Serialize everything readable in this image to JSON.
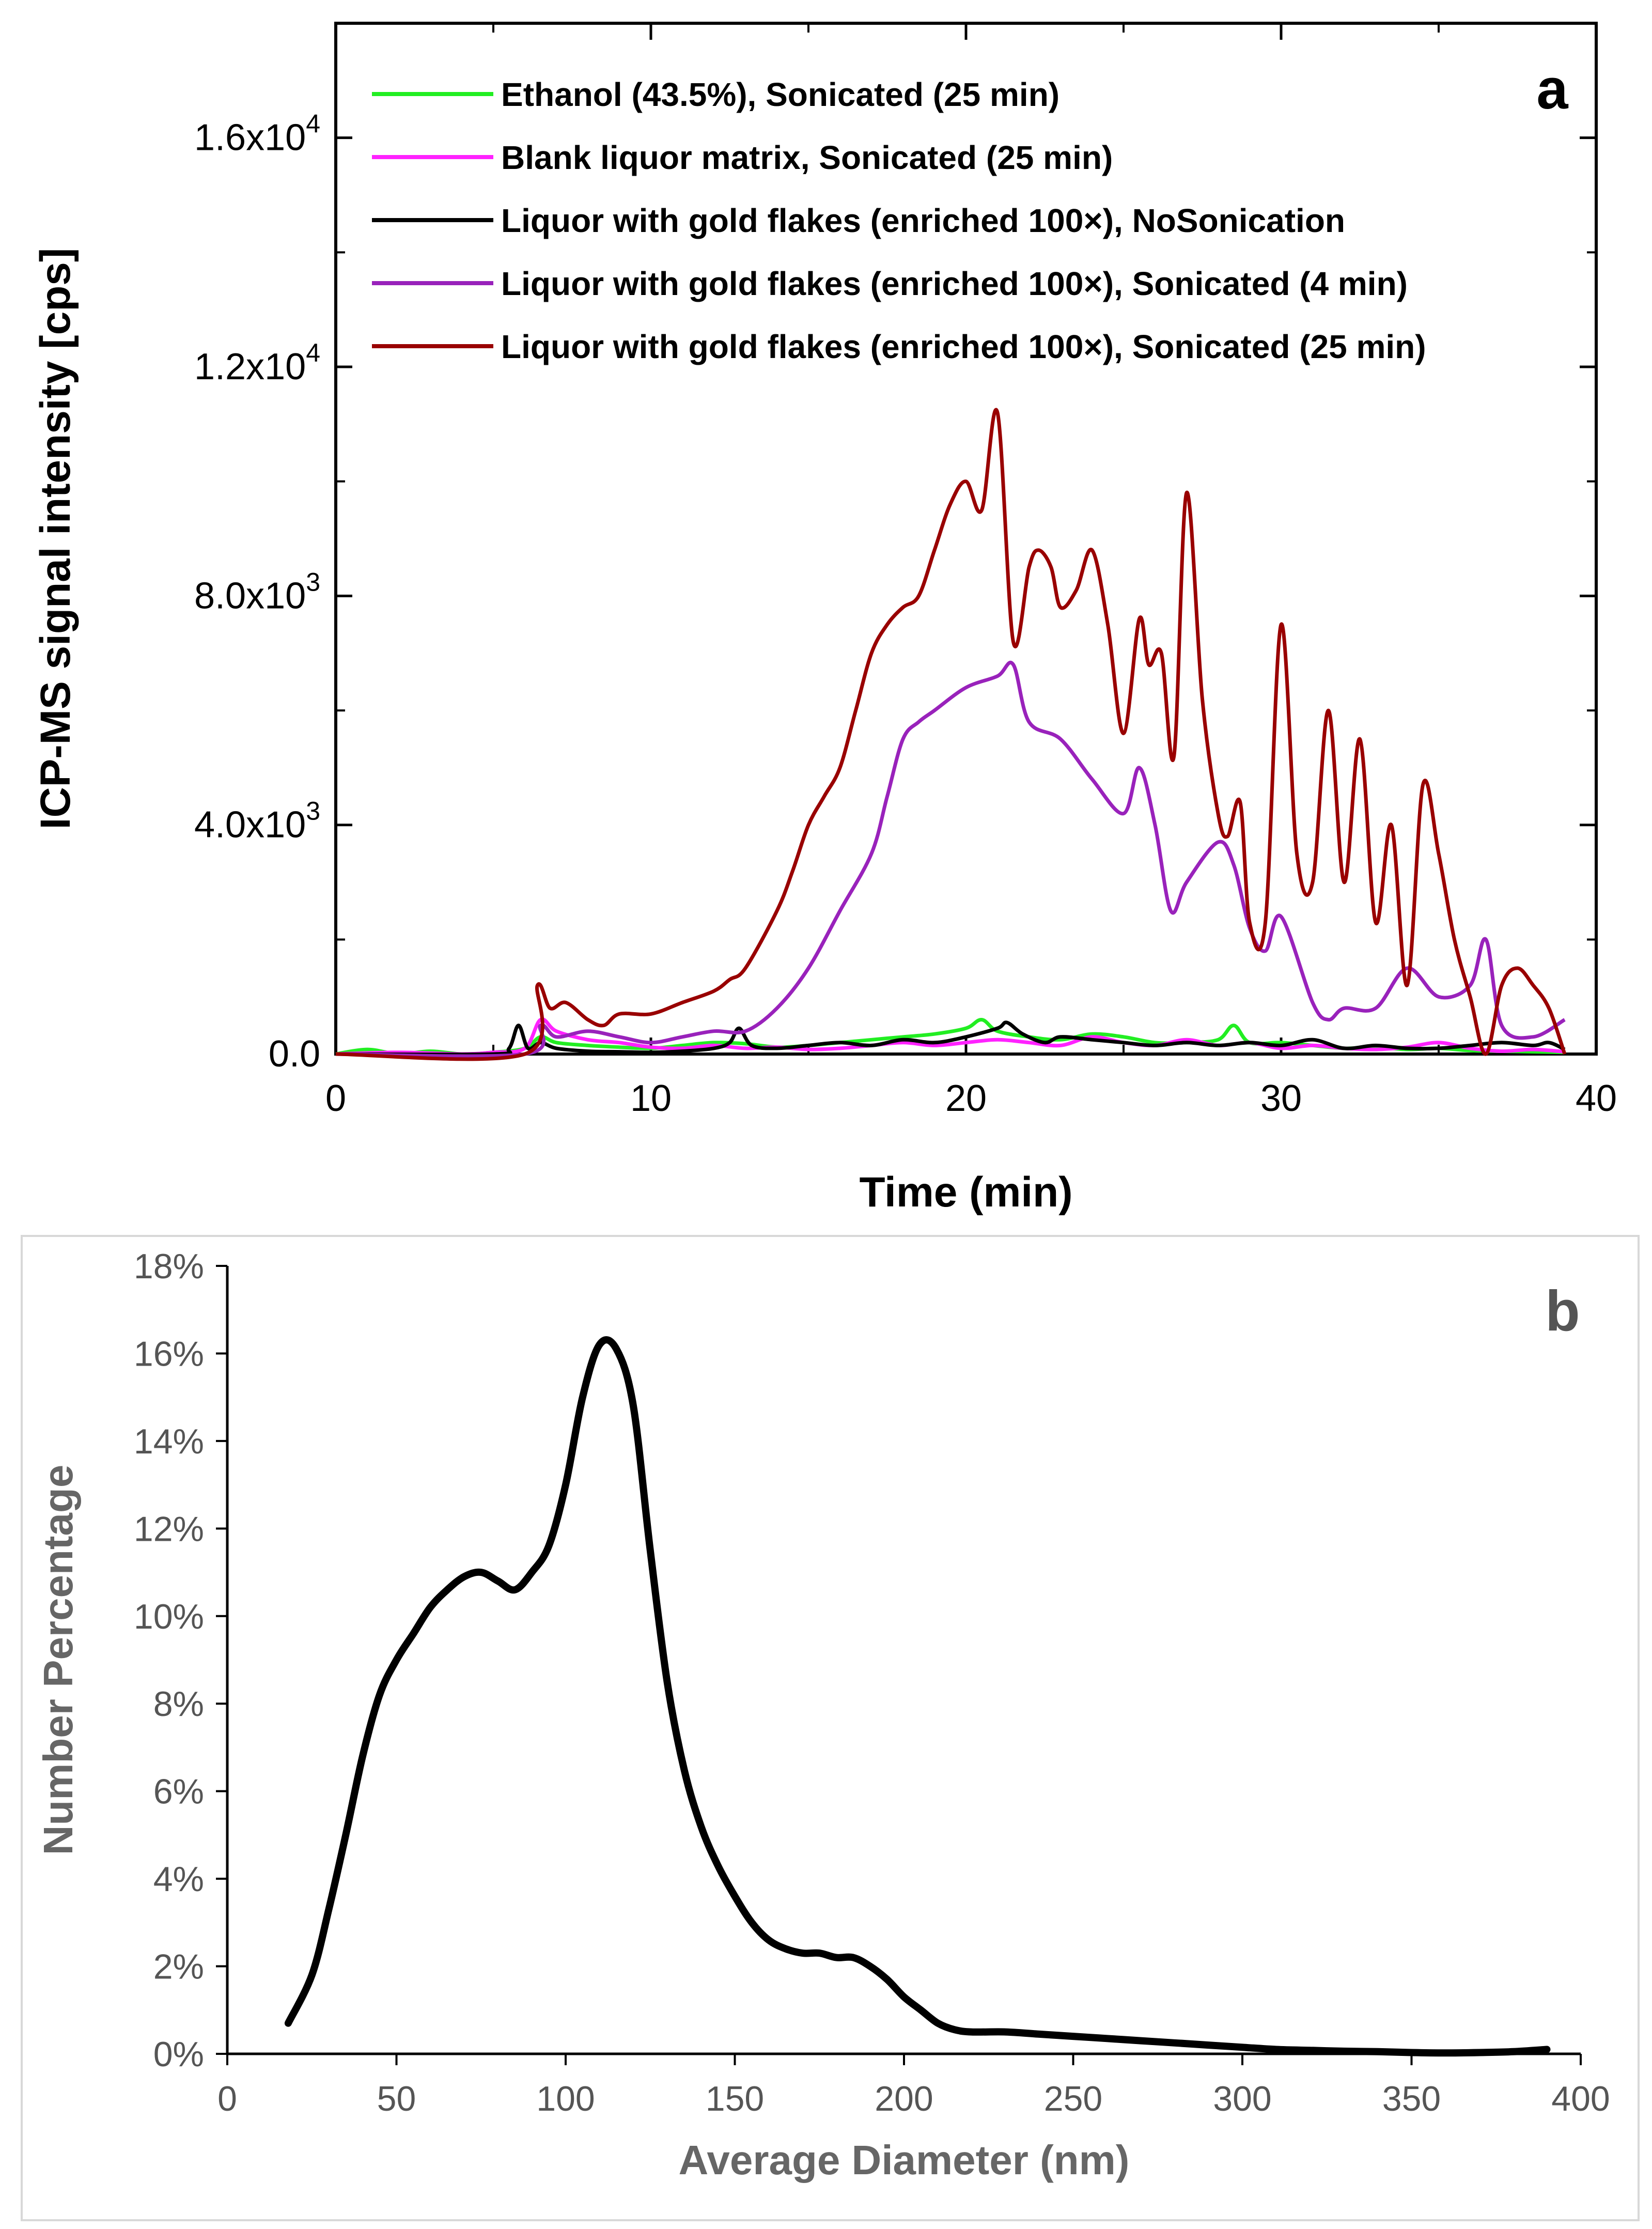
{
  "chart_data": [
    {
      "type": "line",
      "panel_label": "a",
      "xlabel": "Time (min)",
      "ylabel": "ICP-MS signal intensity [cps]",
      "xlim": [
        0,
        40
      ],
      "ylim": [
        0,
        18000
      ],
      "x_ticks": [
        0,
        10,
        20,
        30,
        40
      ],
      "x_tick_labels": [
        "0",
        "10",
        "20",
        "30",
        "40"
      ],
      "y_ticks": [
        0,
        4000,
        8000,
        12000,
        16000
      ],
      "y_tick_labels": [
        {
          "base": "0.0",
          "exp": ""
        },
        {
          "base": "4.0x10",
          "exp": "3"
        },
        {
          "base": "8.0x10",
          "exp": "3"
        },
        {
          "base": "1.2x10",
          "exp": "4"
        },
        {
          "base": "1.6x10",
          "exp": "4"
        }
      ],
      "grid": false,
      "legend_position": "top-left",
      "series": [
        {
          "name": "Ethanol (43.5%), Sonicated (25 min)",
          "color": "#22ee22",
          "x": [
            0,
            1,
            2,
            3,
            4,
            5,
            6,
            6.5,
            7,
            8,
            9,
            10,
            11,
            12,
            13,
            14,
            15,
            16,
            17,
            18,
            19,
            20,
            20.5,
            21,
            22,
            23,
            24,
            25,
            26,
            27,
            28,
            28.5,
            29,
            30,
            31,
            32,
            33,
            34,
            35,
            36,
            37,
            38,
            39
          ],
          "y": [
            0,
            80,
            0,
            50,
            0,
            30,
            100,
            300,
            200,
            150,
            120,
            100,
            150,
            200,
            180,
            120,
            150,
            200,
            250,
            300,
            350,
            450,
            600,
            400,
            300,
            250,
            350,
            300,
            200,
            200,
            250,
            500,
            200,
            200,
            150,
            100,
            120,
            80,
            100,
            60,
            50,
            40,
            30
          ]
        },
        {
          "name": "Blank liquor matrix, Sonicated (25 min)",
          "color": "#ff22ff",
          "x": [
            0,
            2,
            4,
            5,
            6,
            6.5,
            7,
            8,
            9,
            10,
            11,
            12,
            13,
            14,
            15,
            16,
            17,
            18,
            19,
            20,
            21,
            22,
            23,
            24,
            25,
            26,
            27,
            28,
            29,
            30,
            31,
            32,
            33,
            34,
            35,
            36,
            37,
            38,
            39
          ],
          "y": [
            0,
            30,
            0,
            30,
            100,
            600,
            400,
            250,
            200,
            120,
            100,
            150,
            100,
            120,
            80,
            100,
            150,
            200,
            150,
            200,
            250,
            200,
            150,
            300,
            200,
            150,
            250,
            150,
            200,
            100,
            150,
            100,
            80,
            120,
            200,
            100,
            50,
            80,
            40
          ]
        },
        {
          "name": "Liquor with gold flakes (enriched 100×), NoSonication",
          "color": "#000000",
          "x": [
            0,
            5,
            5.5,
            5.8,
            6.1,
            6.5,
            7,
            8,
            9,
            10,
            11,
            12,
            12.5,
            12.8,
            13.2,
            14,
            15,
            16,
            17,
            18,
            19,
            20,
            21,
            21.3,
            21.8,
            22.5,
            23,
            24,
            25,
            26,
            27,
            28,
            29,
            30,
            31,
            32,
            33,
            34,
            35,
            36,
            37,
            38,
            38.5,
            39
          ],
          "y": [
            0,
            0,
            100,
            500,
            100,
            200,
            100,
            50,
            40,
            30,
            50,
            100,
            200,
            450,
            150,
            100,
            150,
            200,
            150,
            250,
            200,
            300,
            450,
            550,
            350,
            200,
            300,
            250,
            200,
            150,
            200,
            150,
            200,
            150,
            250,
            100,
            150,
            100,
            100,
            150,
            200,
            150,
            200,
            80
          ]
        },
        {
          "name": "Liquor with gold flakes (enriched 100×), Sonicated (4 min)",
          "color": "#9922bb",
          "x": [
            0,
            6,
            6.5,
            7,
            8,
            9,
            10,
            11,
            12,
            13,
            14,
            15,
            16,
            17,
            17.5,
            18,
            18.5,
            19,
            20,
            21,
            21.5,
            22,
            23,
            24,
            25,
            25.5,
            26,
            26.5,
            27,
            28,
            28.5,
            29,
            29.5,
            30,
            31,
            31.5,
            32,
            33,
            34,
            35,
            36,
            36.5,
            37,
            38,
            39
          ],
          "y": [
            0,
            0,
            500,
            300,
            400,
            300,
            200,
            300,
            400,
            400,
            800,
            1500,
            2500,
            3500,
            4500,
            5500,
            5800,
            6000,
            6400,
            6600,
            6800,
            5800,
            5500,
            4800,
            4200,
            5000,
            4000,
            2500,
            3000,
            3700,
            3300,
            2200,
            1800,
            2400,
            900,
            600,
            800,
            800,
            1500,
            1000,
            1200,
            2000,
            500,
            300,
            600
          ]
        },
        {
          "name": "Liquor with gold flakes (enriched 100×), Sonicated (25 min)",
          "color": "#990000",
          "x": [
            0,
            6,
            6.4,
            6.8,
            7.3,
            8,
            8.5,
            9,
            10,
            11,
            12,
            12.5,
            13,
            14,
            14.5,
            15,
            15.5,
            16,
            16.5,
            17,
            17.5,
            18,
            18.5,
            19,
            19.5,
            20,
            20.5,
            21,
            21.5,
            22,
            22.3,
            22.7,
            23,
            23.5,
            24,
            24.5,
            25,
            25.5,
            25.8,
            26.2,
            26.6,
            27,
            27.5,
            28,
            28.3,
            28.7,
            29,
            29.5,
            30,
            30.5,
            31,
            31.5,
            32,
            32.5,
            33,
            33.5,
            34,
            34.5,
            35,
            35.5,
            36,
            36.5,
            37,
            37.5,
            38,
            38.5,
            39
          ],
          "y": [
            0,
            0,
            1200,
            800,
            900,
            600,
            500,
            700,
            700,
            900,
            1100,
            1300,
            1500,
            2500,
            3200,
            4000,
            4500,
            5000,
            6000,
            7000,
            7500,
            7800,
            8000,
            8800,
            9600,
            10000,
            9500,
            11200,
            7200,
            8500,
            8800,
            8500,
            7800,
            8100,
            8800,
            7500,
            5600,
            7600,
            6800,
            7000,
            5200,
            9800,
            6200,
            4200,
            3800,
            4400,
            2300,
            2300,
            7500,
            3500,
            3000,
            6000,
            3000,
            5500,
            2300,
            4000,
            1200,
            4700,
            3500,
            2000,
            1000,
            0,
            1200,
            1500,
            1200,
            800,
            0
          ]
        }
      ]
    },
    {
      "type": "line",
      "panel_label": "b",
      "xlabel": "Average Diameter (nm)",
      "ylabel": "Number Percentage",
      "xlim": [
        0,
        400
      ],
      "ylim": [
        0,
        18
      ],
      "x_ticks": [
        0,
        50,
        100,
        150,
        200,
        250,
        300,
        350,
        400
      ],
      "x_tick_labels": [
        "0",
        "50",
        "100",
        "150",
        "200",
        "250",
        "300",
        "350",
        "400"
      ],
      "y_ticks": [
        0,
        2,
        4,
        6,
        8,
        10,
        12,
        14,
        16,
        18
      ],
      "y_tick_labels": [
        "0%",
        "2%",
        "4%",
        "6%",
        "8%",
        "10%",
        "12%",
        "14%",
        "16%",
        "18%"
      ],
      "grid": false,
      "series": [
        {
          "color": "#000000",
          "x": [
            18,
            25,
            30,
            35,
            40,
            45,
            50,
            55,
            60,
            65,
            70,
            75,
            80,
            85,
            90,
            95,
            100,
            105,
            110,
            115,
            120,
            125,
            130,
            135,
            140,
            145,
            150,
            155,
            160,
            165,
            170,
            175,
            180,
            185,
            190,
            195,
            200,
            205,
            210,
            215,
            220,
            230,
            240,
            250,
            260,
            270,
            280,
            290,
            300,
            310,
            320,
            330,
            340,
            350,
            360,
            370,
            380,
            390
          ],
          "y": [
            0.7,
            1.8,
            3.3,
            5.0,
            6.8,
            8.2,
            9.0,
            9.6,
            10.2,
            10.6,
            10.9,
            11.0,
            10.8,
            10.6,
            11.0,
            11.6,
            13.0,
            15.0,
            16.2,
            16.1,
            14.8,
            11.5,
            8.5,
            6.5,
            5.2,
            4.3,
            3.6,
            3.0,
            2.6,
            2.4,
            2.3,
            2.3,
            2.2,
            2.2,
            2.0,
            1.7,
            1.3,
            1.0,
            0.7,
            0.55,
            0.5,
            0.5,
            0.45,
            0.4,
            0.35,
            0.3,
            0.25,
            0.2,
            0.15,
            0.1,
            0.08,
            0.06,
            0.05,
            0.03,
            0.02,
            0.03,
            0.05,
            0.1
          ]
        }
      ]
    }
  ]
}
